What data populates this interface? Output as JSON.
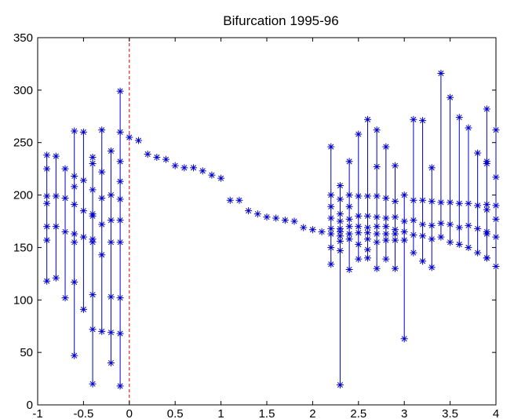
{
  "chart_data": {
    "type": "scatter",
    "title": "Bifurcation 1995-96",
    "xlabel": "",
    "ylabel": "",
    "xlim": [
      -1,
      4
    ],
    "ylim": [
      0,
      350
    ],
    "xticks": [
      -1,
      -0.5,
      0,
      0.5,
      1,
      1.5,
      2,
      2.5,
      3,
      3.5,
      4
    ],
    "xtick_labels": [
      "-1",
      "-0.5",
      "0",
      "0.5",
      "1",
      "1.5",
      "2",
      "2.5",
      "3",
      "3.5",
      "4"
    ],
    "yticks": [
      0,
      50,
      100,
      150,
      200,
      250,
      300,
      350
    ],
    "ytick_labels": [
      "0",
      "50",
      "100",
      "150",
      "200",
      "250",
      "300",
      "350"
    ],
    "grid": false,
    "reference_line": {
      "x": 0,
      "color": "#dd0000",
      "style": "dashed"
    },
    "series_color": "#0000cc",
    "marker": "asterisk",
    "groups": [
      {
        "x": -0.9,
        "y": [
          238,
          225,
          199,
          192,
          170,
          157,
          118
        ]
      },
      {
        "x": -0.8,
        "y": [
          237,
          199,
          170,
          121
        ]
      },
      {
        "x": -0.7,
        "y": [
          225,
          197,
          165,
          102
        ]
      },
      {
        "x": -0.6,
        "y": [
          261,
          218,
          208,
          191,
          163,
          155,
          117,
          47
        ]
      },
      {
        "x": -0.5,
        "y": [
          260,
          214,
          185,
          160,
          91
        ]
      },
      {
        "x": -0.4,
        "y": [
          236,
          230,
          205,
          182,
          180,
          158,
          155,
          105,
          72,
          20
        ]
      },
      {
        "x": -0.3,
        "y": [
          262,
          222,
          197,
          172,
          143,
          70
        ]
      },
      {
        "x": -0.2,
        "y": [
          242,
          200,
          176,
          155,
          103,
          69,
          40
        ]
      },
      {
        "x": -0.1,
        "y": [
          299,
          260,
          232,
          213,
          196,
          176,
          155,
          102,
          68,
          18
        ]
      },
      {
        "x": 0,
        "y": [
          255
        ]
      },
      {
        "x": 0.1,
        "y": [
          252
        ]
      },
      {
        "x": 0.2,
        "y": [
          239
        ]
      },
      {
        "x": 0.3,
        "y": [
          236
        ]
      },
      {
        "x": 0.4,
        "y": [
          234
        ]
      },
      {
        "x": 0.5,
        "y": [
          228
        ]
      },
      {
        "x": 0.6,
        "y": [
          226
        ]
      },
      {
        "x": 0.7,
        "y": [
          226
        ]
      },
      {
        "x": 0.8,
        "y": [
          223
        ]
      },
      {
        "x": 0.9,
        "y": [
          219
        ]
      },
      {
        "x": 1.0,
        "y": [
          216
        ]
      },
      {
        "x": 1.1,
        "y": [
          195
        ]
      },
      {
        "x": 1.2,
        "y": [
          195
        ]
      },
      {
        "x": 1.3,
        "y": [
          185
        ]
      },
      {
        "x": 1.4,
        "y": [
          182
        ]
      },
      {
        "x": 1.5,
        "y": [
          179
        ]
      },
      {
        "x": 1.6,
        "y": [
          178
        ]
      },
      {
        "x": 1.7,
        "y": [
          176
        ]
      },
      {
        "x": 1.8,
        "y": [
          175
        ]
      },
      {
        "x": 1.9,
        "y": [
          169
        ]
      },
      {
        "x": 2.0,
        "y": [
          167
        ]
      },
      {
        "x": 2.1,
        "y": [
          165
        ]
      },
      {
        "x": 2.2,
        "y": [
          246,
          200,
          189,
          178,
          168,
          163,
          150,
          134
        ]
      },
      {
        "x": 2.3,
        "y": [
          209,
          196,
          182,
          175,
          168,
          165,
          161,
          156,
          147,
          19
        ]
      },
      {
        "x": 2.4,
        "y": [
          232,
          200,
          189,
          177,
          170,
          163,
          158,
          129
        ]
      },
      {
        "x": 2.5,
        "y": [
          258,
          199,
          180,
          170,
          164,
          153,
          139
        ]
      },
      {
        "x": 2.6,
        "y": [
          272,
          199,
          180,
          169,
          164,
          158,
          148,
          140
        ]
      },
      {
        "x": 2.7,
        "y": [
          262,
          227,
          199,
          179,
          170,
          163,
          155,
          130
        ]
      },
      {
        "x": 2.8,
        "y": [
          246,
          197,
          178,
          170,
          163,
          157,
          139
        ]
      },
      {
        "x": 2.9,
        "y": [
          228,
          194,
          179,
          167,
          163,
          157,
          130
        ]
      },
      {
        "x": 3.0,
        "y": [
          200,
          175,
          165,
          157,
          63
        ]
      },
      {
        "x": 3.1,
        "y": [
          272,
          195,
          176,
          162,
          145
        ]
      },
      {
        "x": 3.2,
        "y": [
          271,
          195,
          172,
          161,
          137
        ]
      },
      {
        "x": 3.3,
        "y": [
          226,
          194,
          171,
          158,
          131
        ]
      },
      {
        "x": 3.4,
        "y": [
          316,
          193,
          173,
          160
        ]
      },
      {
        "x": 3.5,
        "y": [
          293,
          193,
          172,
          155
        ]
      },
      {
        "x": 3.6,
        "y": [
          274,
          192,
          169,
          153
        ]
      },
      {
        "x": 3.7,
        "y": [
          264,
          192,
          171,
          150
        ]
      },
      {
        "x": 3.8,
        "y": [
          240,
          190,
          168,
          145
        ]
      },
      {
        "x": 3.9,
        "y": [
          282,
          232,
          230,
          191,
          186,
          165,
          163,
          140,
          140
        ]
      },
      {
        "x": 4.0,
        "y": [
          262,
          217,
          190,
          177,
          160,
          132
        ]
      }
    ]
  }
}
